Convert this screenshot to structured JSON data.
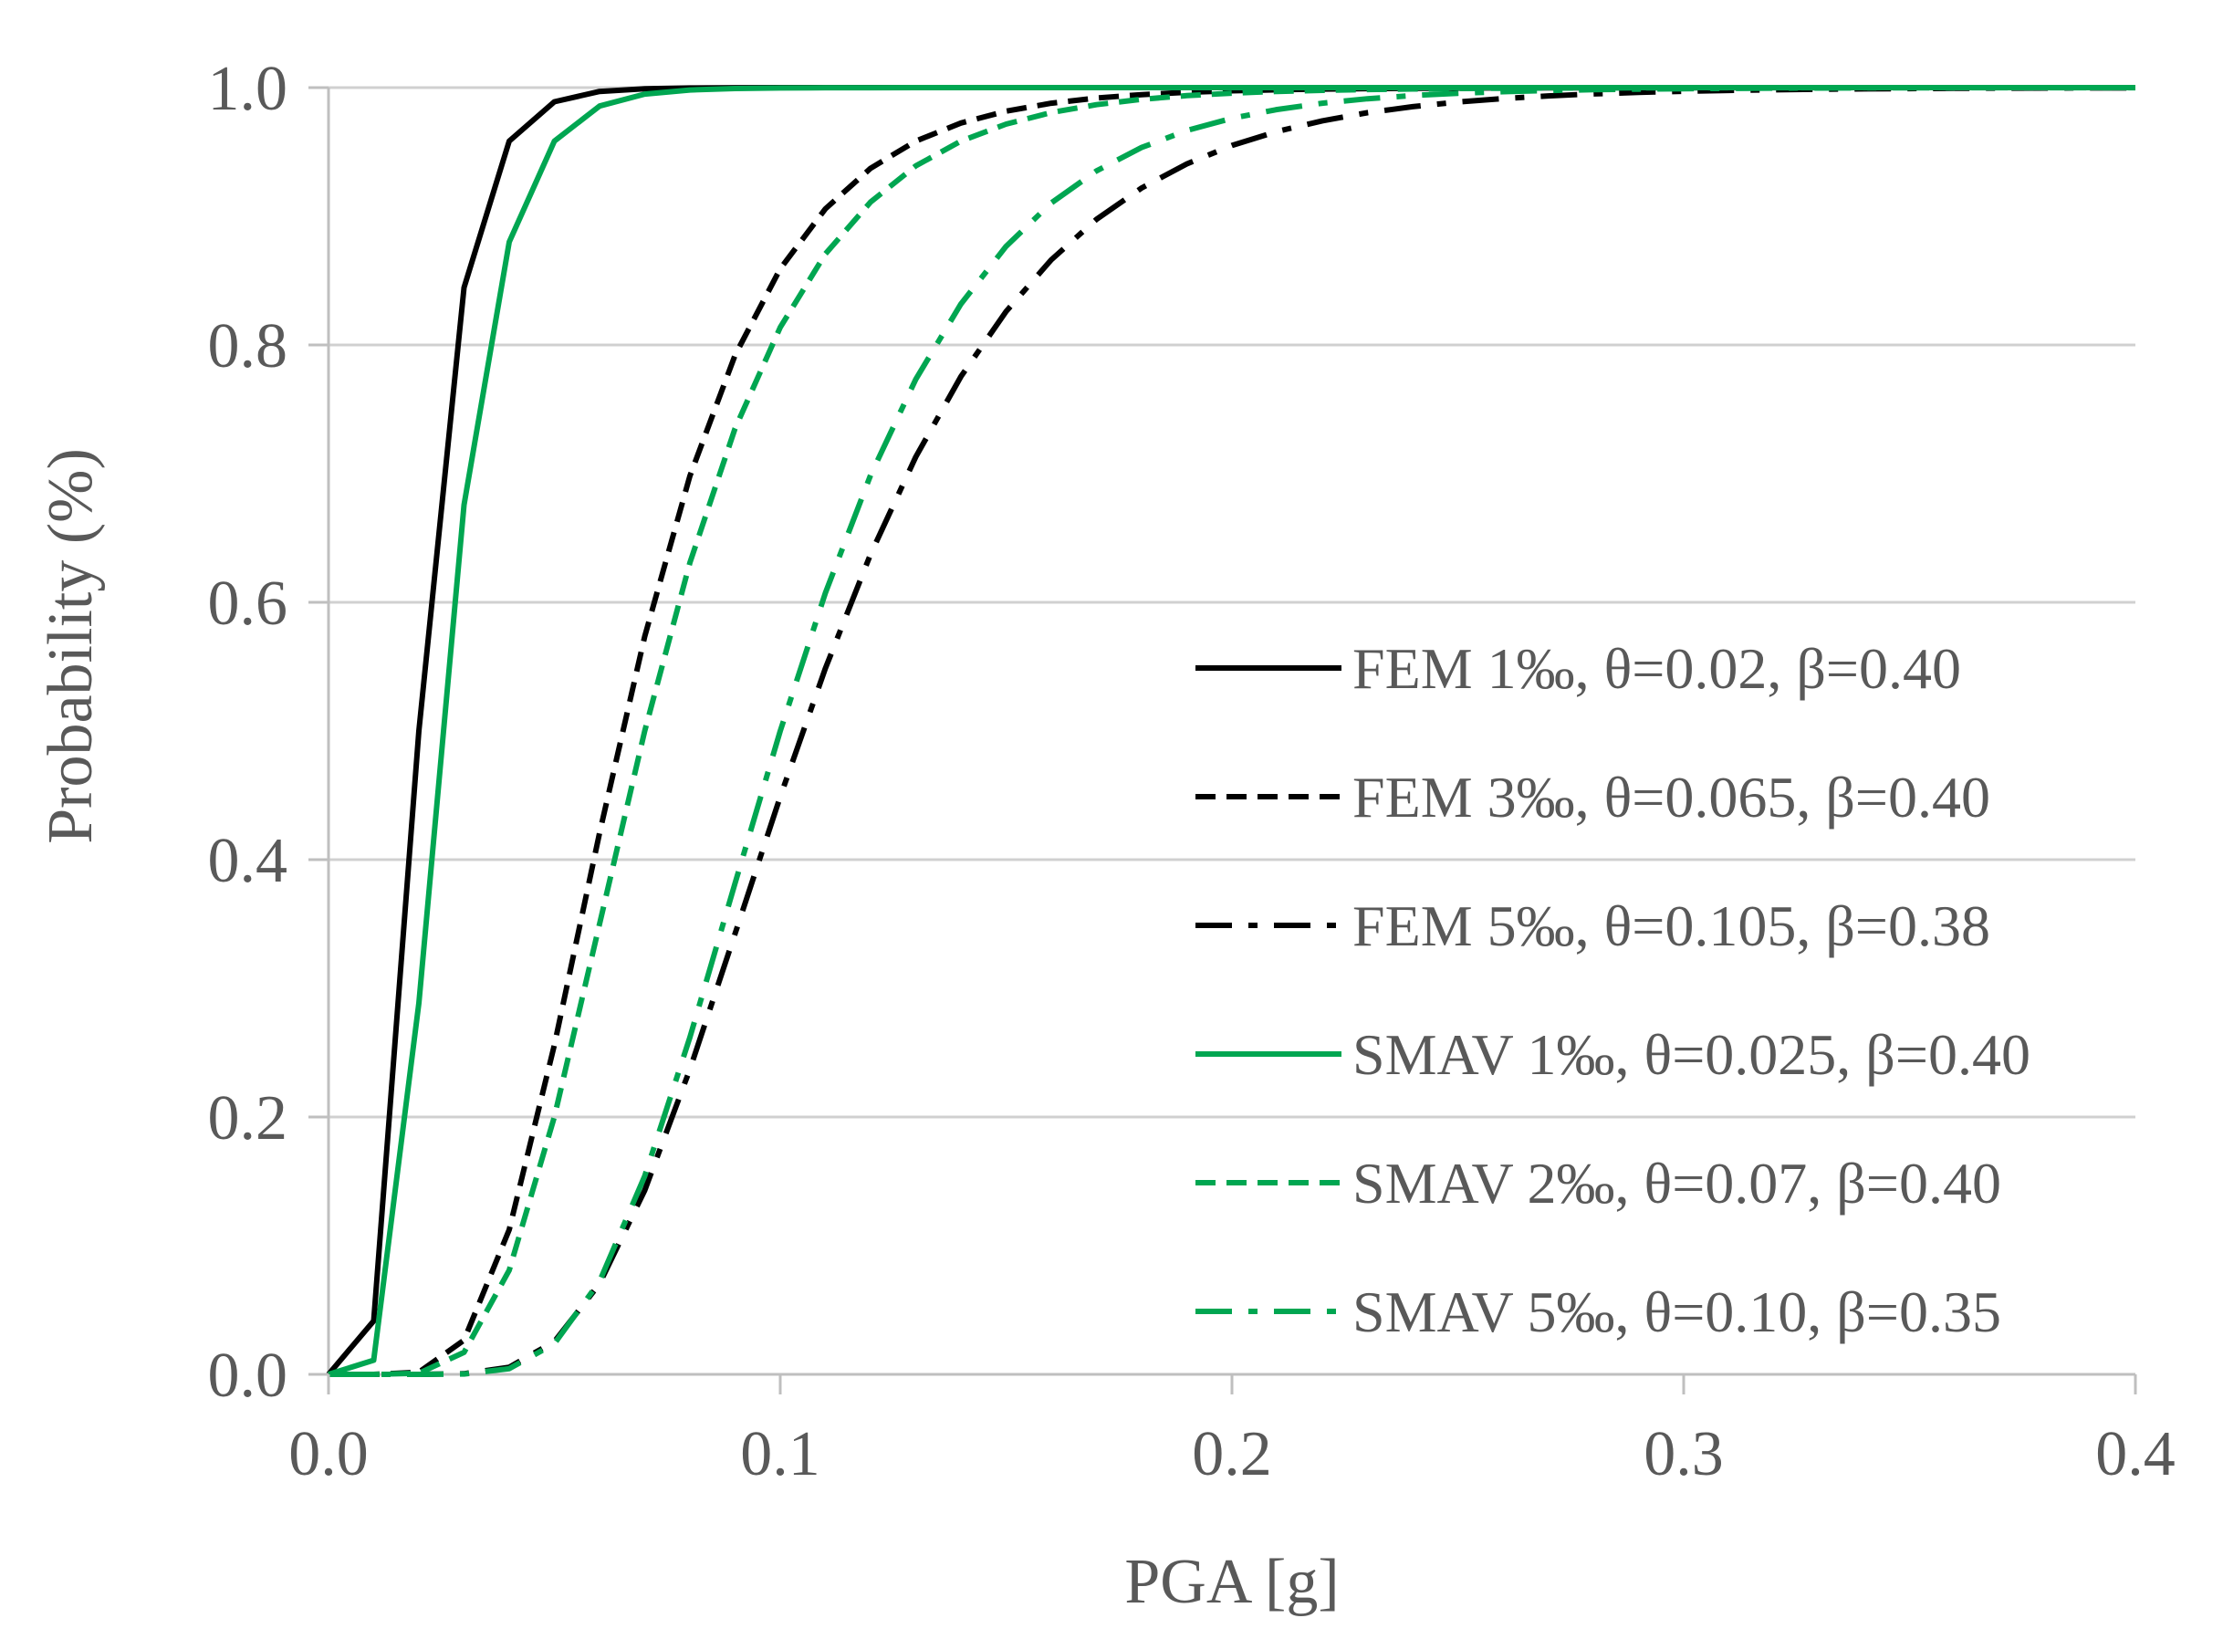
{
  "chart_data": {
    "type": "line",
    "title": "",
    "xlabel": "PGA [g]",
    "ylabel": "Probability (%)",
    "xlim": [
      0,
      0.4
    ],
    "ylim": [
      0,
      1
    ],
    "x_ticks": [
      0,
      0.1,
      0.2,
      0.3,
      0.4
    ],
    "y_ticks": [
      0,
      0.2,
      0.4,
      0.6,
      0.8,
      1.0
    ],
    "x_tick_labels": [
      "0.0",
      "0.1",
      "0.2",
      "0.3",
      "0.4"
    ],
    "y_tick_labels": [
      "0.0",
      "0.2",
      "0.4",
      "0.6",
      "0.8",
      "1.0"
    ],
    "grid": "horizontal",
    "legend_position": "right",
    "series": [
      {
        "name": "FEM 1‰, θ=0.02, β=0.40",
        "theta": 0.02,
        "beta": 0.4,
        "color": "#000000",
        "dash": "solid"
      },
      {
        "name": "FEM 3‰, θ=0.065, β=0.40",
        "theta": 0.065,
        "beta": 0.4,
        "color": "#000000",
        "dash": "dashed"
      },
      {
        "name": "FEM 5‰, θ=0.105, β=0.38",
        "theta": 0.105,
        "beta": 0.38,
        "color": "#000000",
        "dash": "dashdot"
      },
      {
        "name": "SMAV 1‰, θ=0.025, β=0.40",
        "theta": 0.025,
        "beta": 0.4,
        "color": "#00A651",
        "dash": "solid"
      },
      {
        "name": "SMAV 2‰, θ=0.07, β=0.40",
        "theta": 0.07,
        "beta": 0.4,
        "color": "#00A651",
        "dash": "dashed"
      },
      {
        "name": "SMAV 5‰, θ=0.10, β=0.35",
        "theta": 0.1,
        "beta": 0.35,
        "color": "#00A651",
        "dash": "dashdot"
      }
    ]
  }
}
